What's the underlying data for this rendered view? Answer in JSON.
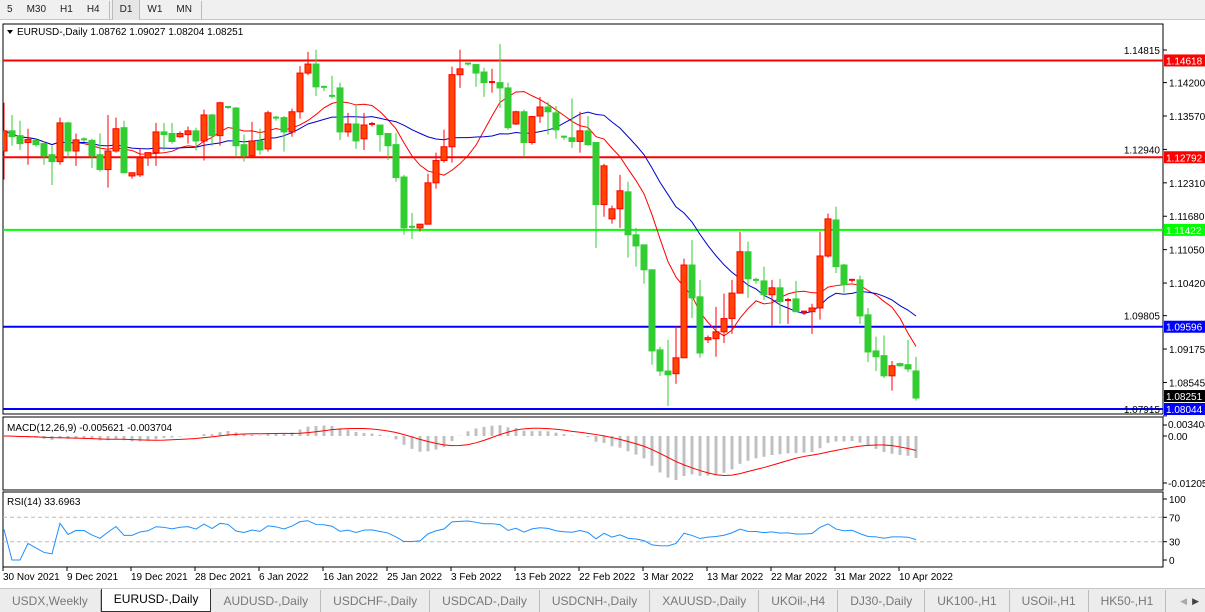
{
  "toolbar": {
    "timeframes": [
      {
        "label": "5"
      },
      {
        "label": "M30"
      },
      {
        "label": "H1"
      },
      {
        "label": "H4"
      },
      {
        "label": "D1",
        "active": true
      },
      {
        "label": "W1"
      },
      {
        "label": "MN"
      }
    ]
  },
  "chart": {
    "header": "EURUSD-,Daily  1.08762 1.09027 1.08204 1.08251",
    "symbol": "EURUSD-",
    "period": "Daily",
    "ohlc_last": {
      "open": 1.08762,
      "high": 1.09027,
      "low": 1.08204,
      "close": 1.08251
    },
    "colors": {
      "bull": "#FF4500",
      "bull_border": "#FF0000",
      "bear": "#32CD32",
      "ma_fast": "#FF0000",
      "ma_slow": "#0000CC",
      "macd_hist": "#C0C0C0",
      "macd_signal": "#FF0000",
      "rsi": "#1E90FF"
    },
    "price_ticks": [
      "1.14815",
      "1.14200",
      "1.13570",
      "1.12940",
      "1.12310",
      "1.11680",
      "1.11050",
      "1.10420",
      "1.09805",
      "1.09175",
      "1.08545",
      "1.07915"
    ],
    "hlines": [
      {
        "price": 1.14618,
        "label": "1.14618",
        "color": "#FF0000"
      },
      {
        "price": 1.12792,
        "label": "1.12792",
        "color": "#FF0000"
      },
      {
        "price": 1.11422,
        "label": "1.11422",
        "color": "#00FF00"
      },
      {
        "price": 1.09596,
        "label": "1.09596",
        "color": "#0000FF"
      },
      {
        "price": 1.08044,
        "label": "1.08044",
        "color": "#0000FF"
      }
    ],
    "current_price": {
      "price": 1.08251,
      "label": "1.08251"
    },
    "candles": [
      [
        1.1291,
        1.1382,
        1.1237,
        1.1329
      ],
      [
        1.1329,
        1.1359,
        1.1301,
        1.1318
      ],
      [
        1.132,
        1.1348,
        1.1293,
        1.1305
      ],
      [
        1.1307,
        1.1333,
        1.1265,
        1.1313
      ],
      [
        1.1311,
        1.1315,
        1.1299,
        1.1303
      ],
      [
        1.1305,
        1.1309,
        1.1265,
        1.1282
      ],
      [
        1.1284,
        1.1301,
        1.1227,
        1.1271
      ],
      [
        1.1271,
        1.1354,
        1.1265,
        1.1344
      ],
      [
        1.1344,
        1.1346,
        1.1278,
        1.1291
      ],
      [
        1.1291,
        1.1324,
        1.1263,
        1.1312
      ],
      [
        1.1313,
        1.1317,
        1.1309,
        1.1311
      ],
      [
        1.1311,
        1.1314,
        1.1259,
        1.1282
      ],
      [
        1.1284,
        1.1324,
        1.1252,
        1.1256
      ],
      [
        1.1256,
        1.1359,
        1.1222,
        1.1291
      ],
      [
        1.1291,
        1.1354,
        1.1288,
        1.1333
      ],
      [
        1.1335,
        1.1348,
        1.125,
        1.125
      ],
      [
        1.1244,
        1.125,
        1.1239,
        1.125
      ],
      [
        1.1246,
        1.1297,
        1.1242,
        1.1278
      ],
      [
        1.1278,
        1.1288,
        1.1263,
        1.1288
      ],
      [
        1.1288,
        1.1344,
        1.1263,
        1.1327
      ],
      [
        1.1327,
        1.1344,
        1.1292,
        1.1322
      ],
      [
        1.1324,
        1.1344,
        1.1305,
        1.1309
      ],
      [
        1.1318,
        1.1328,
        1.1316,
        1.1324
      ],
      [
        1.1322,
        1.1337,
        1.1305,
        1.1329
      ],
      [
        1.1329,
        1.1335,
        1.1292,
        1.131
      ],
      [
        1.131,
        1.1369,
        1.1273,
        1.1359
      ],
      [
        1.1359,
        1.1361,
        1.1301,
        1.132
      ],
      [
        1.132,
        1.1384,
        1.1301,
        1.1382
      ],
      [
        1.1374,
        1.1376,
        1.137,
        1.1372
      ],
      [
        1.1372,
        1.1374,
        1.128,
        1.1301
      ],
      [
        1.1303,
        1.1322,
        1.1271,
        1.1282
      ],
      [
        1.1282,
        1.1346,
        1.1278,
        1.131
      ],
      [
        1.131,
        1.1333,
        1.1284,
        1.1293
      ],
      [
        1.1295,
        1.1367,
        1.129,
        1.1363
      ],
      [
        1.1354,
        1.1357,
        1.1348,
        1.1352
      ],
      [
        1.1354,
        1.1357,
        1.129,
        1.1327
      ],
      [
        1.1327,
        1.1371,
        1.1318,
        1.1365
      ],
      [
        1.1365,
        1.1451,
        1.1352,
        1.1438
      ],
      [
        1.1438,
        1.1478,
        1.1434,
        1.1455
      ],
      [
        1.1455,
        1.1482,
        1.1395,
        1.1412
      ],
      [
        1.1412,
        1.1414,
        1.1404,
        1.141
      ],
      [
        1.1395,
        1.1433,
        1.139,
        1.1393
      ],
      [
        1.141,
        1.142,
        1.1312,
        1.1327
      ],
      [
        1.1327,
        1.1363,
        1.1318,
        1.1342
      ],
      [
        1.1342,
        1.1378,
        1.1295,
        1.131
      ],
      [
        1.1314,
        1.1363,
        1.1293,
        1.134
      ],
      [
        1.134,
        1.1346,
        1.1337,
        1.1342
      ],
      [
        1.134,
        1.134,
        1.129,
        1.1322
      ],
      [
        1.1324,
        1.1324,
        1.1274,
        1.1301
      ],
      [
        1.1303,
        1.1325,
        1.1233,
        1.1241
      ],
      [
        1.1242,
        1.1246,
        1.1133,
        1.1146
      ],
      [
        1.1148,
        1.1174,
        1.1125,
        1.1146
      ],
      [
        1.1146,
        1.1153,
        1.1139,
        1.1153
      ],
      [
        1.1153,
        1.1248,
        1.1153,
        1.1231
      ],
      [
        1.1231,
        1.1288,
        1.122,
        1.1273
      ],
      [
        1.1273,
        1.1331,
        1.1269,
        1.1299
      ],
      [
        1.1299,
        1.145,
        1.1269,
        1.1435
      ],
      [
        1.1435,
        1.1482,
        1.141,
        1.1446
      ],
      [
        1.1456,
        1.1458,
        1.1452,
        1.1454
      ],
      [
        1.1454,
        1.1454,
        1.1412,
        1.1438
      ],
      [
        1.144,
        1.1448,
        1.1393,
        1.142
      ],
      [
        1.142,
        1.1446,
        1.1401,
        1.1421
      ],
      [
        1.142,
        1.1493,
        1.1372,
        1.141
      ],
      [
        1.141,
        1.142,
        1.1331,
        1.1335
      ],
      [
        1.1342,
        1.1367,
        1.134,
        1.1365
      ],
      [
        1.1365,
        1.1369,
        1.128,
        1.1307
      ],
      [
        1.1307,
        1.1357,
        1.1303,
        1.1356
      ],
      [
        1.1357,
        1.1393,
        1.1344,
        1.1374
      ],
      [
        1.1374,
        1.1384,
        1.1322,
        1.1365
      ],
      [
        1.1363,
        1.1376,
        1.1314,
        1.1331
      ],
      [
        1.1318,
        1.132,
        1.1312,
        1.1316
      ],
      [
        1.1316,
        1.139,
        1.1297,
        1.1309
      ],
      [
        1.1309,
        1.1365,
        1.1288,
        1.1329
      ],
      [
        1.1329,
        1.1357,
        1.1301,
        1.1303
      ],
      [
        1.1307,
        1.1307,
        1.1108,
        1.119
      ],
      [
        1.119,
        1.1267,
        1.1167,
        1.1263
      ],
      [
        1.1163,
        1.1188,
        1.1154,
        1.1182
      ],
      [
        1.1182,
        1.1246,
        1.1146,
        1.1216
      ],
      [
        1.1214,
        1.1233,
        1.109,
        1.1133
      ],
      [
        1.1133,
        1.1146,
        1.1073,
        1.1112
      ],
      [
        1.1114,
        1.1114,
        1.1041,
        1.1067
      ],
      [
        1.1067,
        1.1067,
        1.0888,
        1.0914
      ],
      [
        1.0916,
        1.0922,
        1.0867,
        1.0876
      ],
      [
        1.0876,
        1.0935,
        1.081,
        1.0869
      ],
      [
        1.0871,
        1.0961,
        1.0852,
        1.0901
      ],
      [
        1.0901,
        1.1088,
        1.0901,
        1.1076
      ],
      [
        1.1076,
        1.1123,
        1.0976,
        1.1014
      ],
      [
        1.1016,
        1.1048,
        1.0901,
        1.091
      ],
      [
        1.0935,
        1.0943,
        1.0929,
        1.0939
      ],
      [
        1.0937,
        1.0997,
        1.0903,
        1.095
      ],
      [
        1.095,
        1.1022,
        1.0929,
        1.0975
      ],
      [
        1.0975,
        1.1048,
        1.0946,
        1.1023
      ],
      [
        1.1023,
        1.1139,
        1.1023,
        1.1101
      ],
      [
        1.1101,
        1.112,
        1.1014,
        1.105
      ],
      [
        1.1048,
        1.1052,
        1.1041,
        1.1046
      ],
      [
        1.1046,
        1.1073,
        1.101,
        1.102
      ],
      [
        1.102,
        1.1048,
        1.0961,
        1.1033
      ],
      [
        1.1033,
        1.105,
        1.0965,
        1.1007
      ],
      [
        1.1008,
        1.1014,
        1.0965,
        1.101
      ],
      [
        1.1012,
        1.1046,
        1.0988,
        1.0988
      ],
      [
        1.0986,
        1.099,
        1.0982,
        1.0988
      ],
      [
        1.0988,
        1.1003,
        1.0946,
        1.0995
      ],
      [
        1.0995,
        1.1139,
        1.0973,
        1.1093
      ],
      [
        1.1093,
        1.1173,
        1.109,
        1.1163
      ],
      [
        1.1161,
        1.1186,
        1.1061,
        1.1073
      ],
      [
        1.1076,
        1.1078,
        1.1024,
        1.1039
      ],
      [
        1.1046,
        1.105,
        1.1043,
        1.1048
      ],
      [
        1.1048,
        1.1056,
        1.0965,
        1.098
      ],
      [
        1.0982,
        1.0995,
        1.0893,
        1.0912
      ],
      [
        1.0914,
        1.0941,
        1.0876,
        1.0903
      ],
      [
        1.0905,
        1.0943,
        1.0863,
        1.0867
      ],
      [
        1.0867,
        1.0895,
        1.0839,
        1.0886
      ],
      [
        1.089,
        1.0892,
        1.0884,
        1.0886
      ],
      [
        1.0888,
        1.0935,
        1.0874,
        1.088
      ],
      [
        1.08762,
        1.09027,
        1.08204,
        1.08251
      ]
    ],
    "macd": {
      "label": "MACD(12,26,9) -0.005621 -0.003704",
      "ticks": [
        "0.003408",
        "0.00",
        "-0.01205"
      ]
    },
    "rsi": {
      "label": "RSI(14) 33.6963",
      "ticks": [
        "100",
        "70",
        "30",
        "0"
      ],
      "levels": [
        70,
        30
      ]
    },
    "dates": [
      "30 Nov 2021",
      "9 Dec 2021",
      "19 Dec 2021",
      "28 Dec 2021",
      "6 Jan 2022",
      "16 Jan 2022",
      "25 Jan 2022",
      "3 Feb 2022",
      "13 Feb 2022",
      "22 Feb 2022",
      "3 Mar 2022",
      "13 Mar 2022",
      "22 Mar 2022",
      "31 Mar 2022",
      "10 Apr 2022"
    ]
  },
  "tabs": [
    {
      "label": "USDX,Weekly"
    },
    {
      "label": "EURUSD-,Daily",
      "active": true
    },
    {
      "label": "AUDUSD-,Daily"
    },
    {
      "label": "USDCHF-,Daily"
    },
    {
      "label": "USDCAD-,Daily"
    },
    {
      "label": "USDCNH-,Daily"
    },
    {
      "label": "XAUUSD-,Daily"
    },
    {
      "label": "UKOil-,H4"
    },
    {
      "label": "DJ30-,Daily"
    },
    {
      "label": "UK100-,H1"
    },
    {
      "label": "USOil-,H1"
    },
    {
      "label": "HK50-,H1"
    }
  ],
  "tab_scroll": {
    "left_icon": "triangle-left-icon",
    "right_icon": "triangle-right-icon"
  }
}
